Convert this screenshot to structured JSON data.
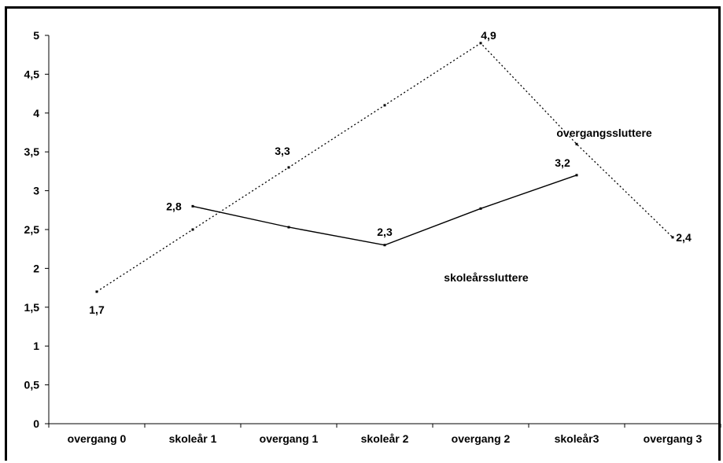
{
  "chart_data": {
    "type": "line",
    "title": "",
    "xlabel": "",
    "ylabel": "",
    "categories": [
      "overgang 0",
      "skoleår 1",
      "overgang 1",
      "skoleår 2",
      "overgang 2",
      "skoleår3",
      "overgang 3"
    ],
    "ylim": [
      0,
      5
    ],
    "yticks": [
      "0",
      "0,5",
      "1",
      "1,5",
      "2",
      "2,5",
      "3",
      "3,5",
      "4",
      "4,5",
      "5"
    ],
    "grid": false,
    "legend": "none",
    "series": [
      {
        "name": "overgangssluttere",
        "style": "dotted",
        "values": [
          1.7,
          2.5,
          3.3,
          4.1,
          4.9,
          3.6,
          2.4
        ],
        "data_labels": [
          "1,7",
          "",
          "3,3",
          "",
          "4,9",
          "",
          "2,4"
        ]
      },
      {
        "name": "skoleårssluttere",
        "style": "solid",
        "values": [
          null,
          2.8,
          2.53,
          2.3,
          2.77,
          3.2,
          null
        ],
        "data_labels": [
          "",
          "2,8",
          "",
          "2,3",
          "",
          "3,2",
          ""
        ]
      }
    ]
  },
  "colors": {
    "line": "#000000",
    "background": "#ffffff"
  }
}
